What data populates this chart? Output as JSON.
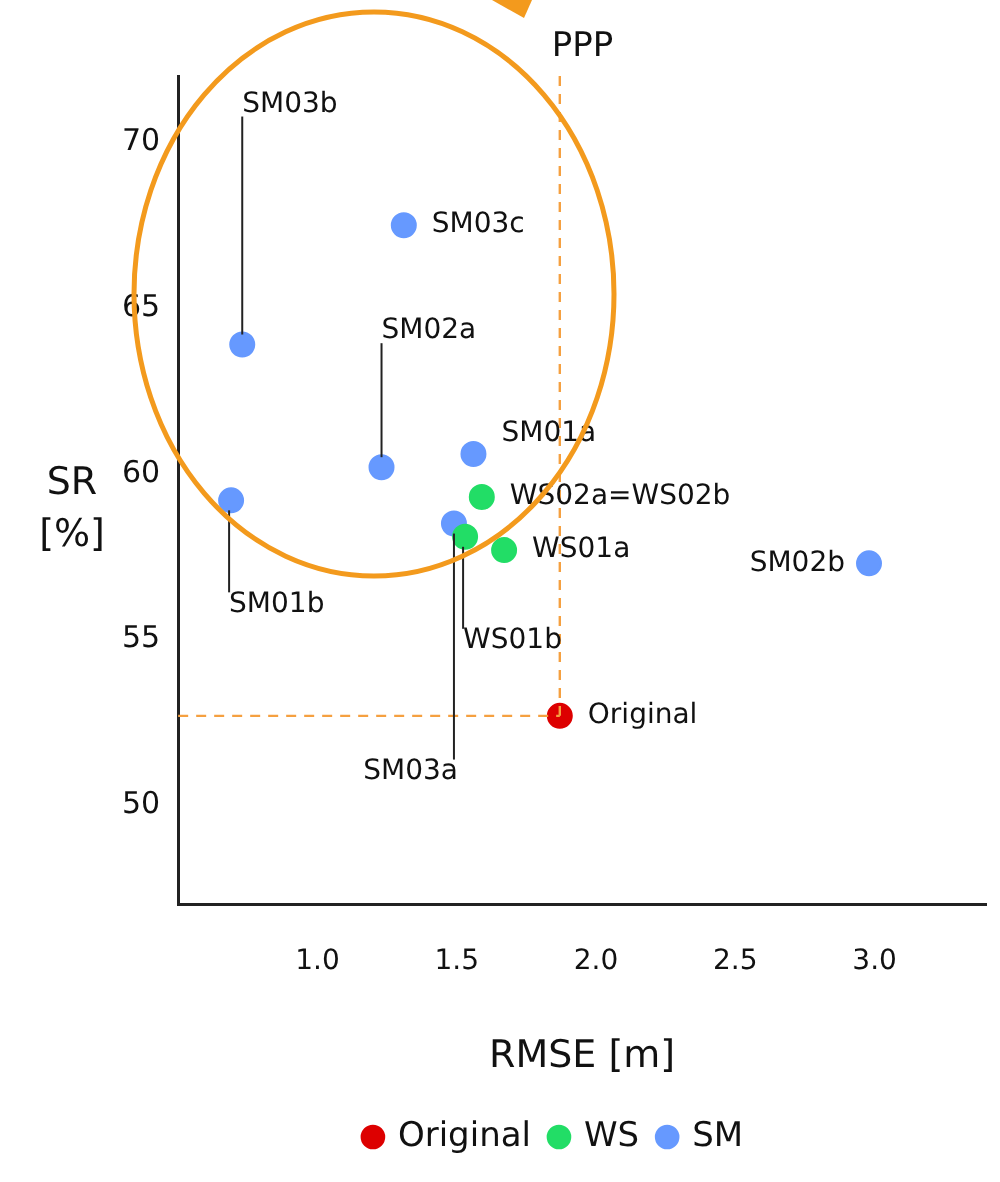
{
  "chart_data": {
    "type": "scatter",
    "xlabel": "RMSE [m]",
    "ylabel": "SR [%]",
    "xlim": [
      0.5,
      3.4
    ],
    "ylim": [
      47,
      72
    ],
    "xticks": [
      {
        "value": 1,
        "label": "1.0"
      },
      {
        "value": 1.5,
        "label": "1.5"
      },
      {
        "value": 2,
        "label": "2.0"
      },
      {
        "value": 2.5,
        "label": "2.5"
      },
      {
        "value": 3,
        "label": "3.0"
      }
    ],
    "yticks": [
      50,
      55,
      60,
      65,
      70
    ],
    "grid": false,
    "legend": "bottom",
    "marker": "circle",
    "series": [
      {
        "name": "Original",
        "color": "#dd0000",
        "x": [
          1.87
        ],
        "values": [
          52.7
        ]
      },
      {
        "name": "WS",
        "color": "#22dd66",
        "x": [
          1.59,
          1.67,
          1.53
        ],
        "values": [
          59.3,
          57.7,
          58.1
        ]
      },
      {
        "name": "SM",
        "color": "#6699ff",
        "x": [
          0.73,
          1.31,
          1.23,
          1.56,
          0.69,
          1.49,
          2.98
        ],
        "values": [
          63.9,
          67.5,
          60.2,
          60.6,
          59.2,
          58.5,
          57.3
        ]
      }
    ],
    "ref_lines": [
      {
        "axis": "x",
        "value": 1.87,
        "label": "PPP",
        "color": "#f5a040",
        "line_style": "dashed"
      },
      {
        "axis": "y",
        "value": 52.7,
        "color": "#f5a040",
        "line_style": "dashed"
      }
    ],
    "annotations": [
      {
        "text": "Original",
        "x": 1.87,
        "y": 52.7
      },
      {
        "text": "WS02a=WS02b",
        "x": 1.59,
        "y": 59.3
      },
      {
        "text": "WS01a",
        "x": 1.67,
        "y": 57.7
      },
      {
        "text": "WS01b",
        "x": 1.53,
        "y": 58.1
      },
      {
        "text": "SM03b",
        "x": 0.73,
        "y": 63.9
      },
      {
        "text": "SM03c",
        "x": 1.31,
        "y": 67.5
      },
      {
        "text": "SM02a",
        "x": 1.23,
        "y": 60.2
      },
      {
        "text": "SM01a",
        "x": 1.56,
        "y": 60.6
      },
      {
        "text": "SM01b",
        "x": 0.69,
        "y": 59.2
      },
      {
        "text": "SM03a",
        "x": 1.49,
        "y": 58.5
      },
      {
        "text": "SM02b",
        "x": 2.98,
        "y": 57.3
      }
    ]
  }
}
